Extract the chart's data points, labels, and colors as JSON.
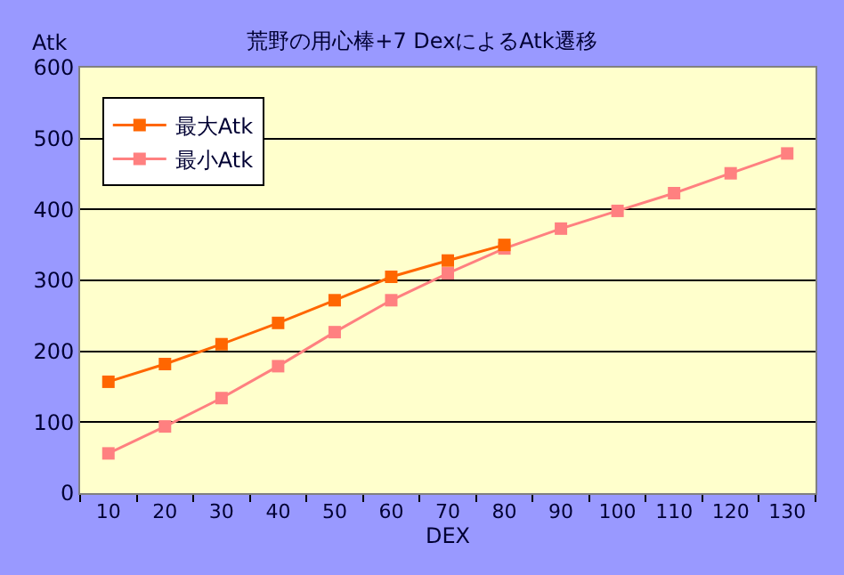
{
  "chart_data": {
    "type": "line",
    "title": "荒野の用心棒+7 DexによるAtk遷移",
    "xlabel": "DEX",
    "ylabel": "Atk",
    "categories": [
      "10",
      "20",
      "30",
      "40",
      "50",
      "60",
      "70",
      "80",
      "90",
      "100",
      "110",
      "120",
      "130"
    ],
    "series": [
      {
        "name": "最大Atk",
        "color": "#ff6600",
        "values": [
          157,
          182,
          210,
          240,
          272,
          305,
          328,
          350,
          null,
          null,
          null,
          null,
          null
        ]
      },
      {
        "name": "最小Atk",
        "color": "#ff8080",
        "values": [
          56,
          94,
          134,
          179,
          227,
          272,
          310,
          345,
          373,
          398,
          423,
          451,
          479
        ]
      }
    ],
    "ylim": [
      0,
      600
    ],
    "yticks": [
      0,
      100,
      200,
      300,
      400,
      500,
      600
    ],
    "grid": "y",
    "legend": "top left",
    "marker": "square",
    "line_style": "solid"
  }
}
